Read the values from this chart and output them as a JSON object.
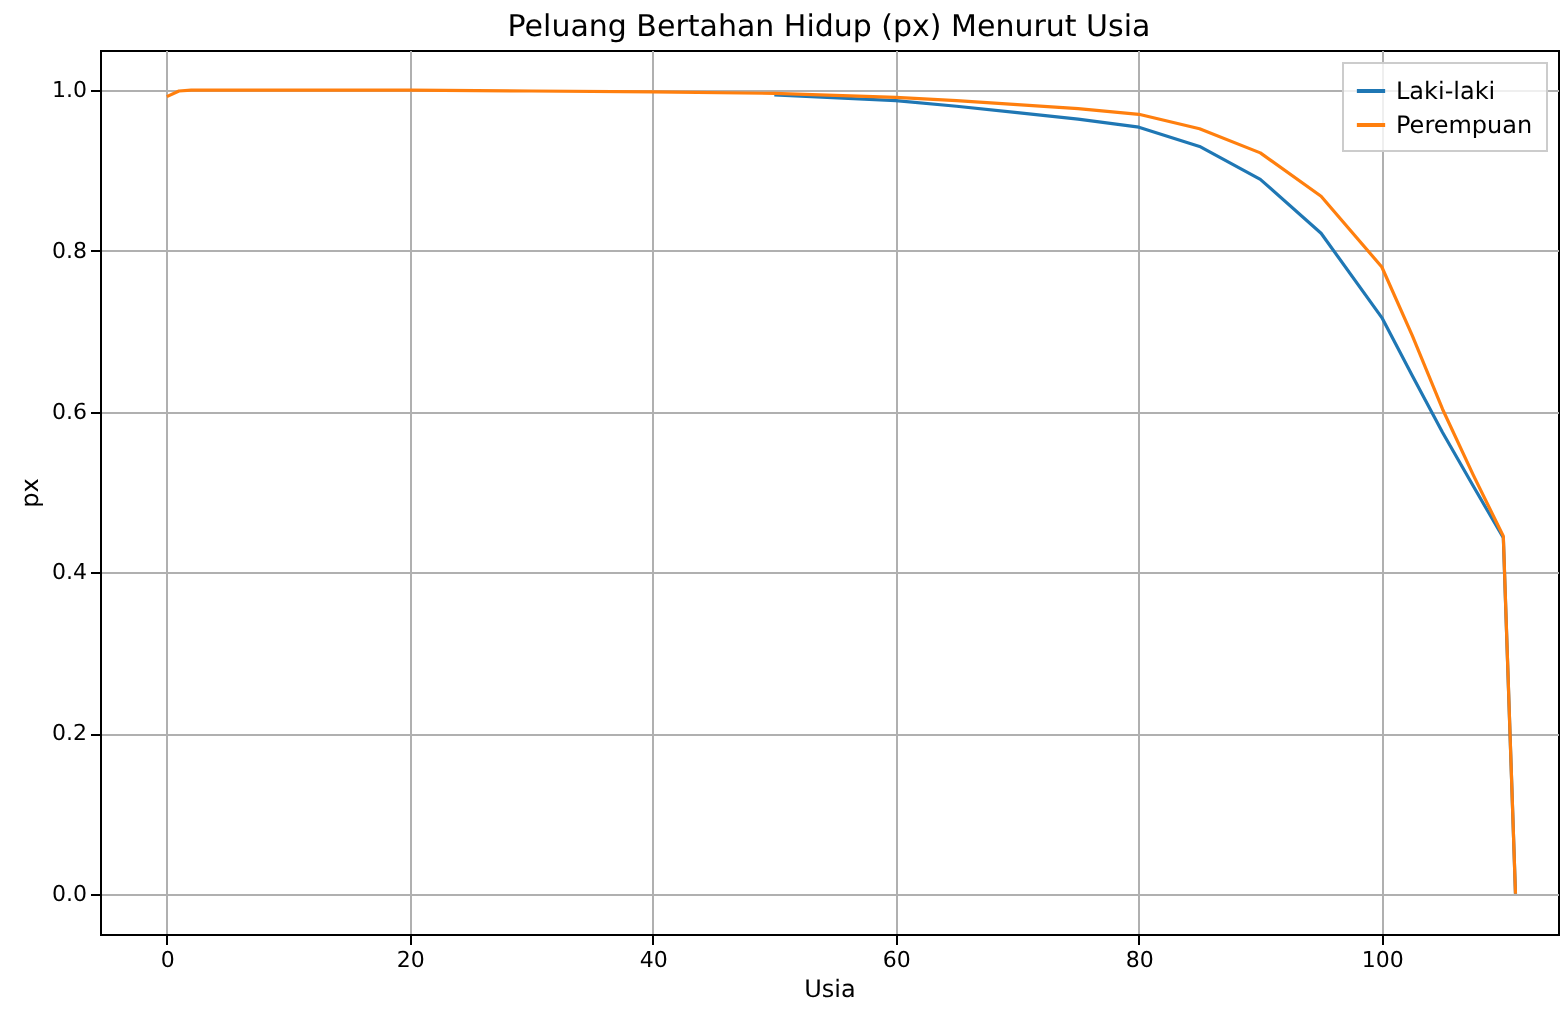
{
  "chart_data": {
    "type": "line",
    "title": "Peluang Bertahan Hidup (px) Menurut Usia",
    "xlabel": "Usia",
    "ylabel": "px",
    "x": [
      0,
      1,
      2,
      5,
      10,
      20,
      30,
      40,
      50,
      60,
      65,
      70,
      75,
      80,
      85,
      90,
      95,
      100,
      102.5,
      105,
      107.5,
      110,
      111
    ],
    "series": [
      {
        "name": "Laki-laki",
        "color": "#1f77b4",
        "values": [
          null,
          null,
          null,
          null,
          null,
          null,
          null,
          null,
          0.994,
          0.987,
          0.98,
          0.972,
          0.964,
          0.954,
          0.93,
          0.889,
          0.822,
          0.717,
          0.645,
          0.574,
          0.508,
          0.443,
          0
        ]
      },
      {
        "name": "Perempuan",
        "color": "#ff7f0e",
        "values": [
          0.992,
          0.999,
          1.0,
          1.0,
          1.0,
          1.0,
          0.999,
          0.998,
          0.996,
          0.991,
          0.987,
          0.982,
          0.977,
          0.97,
          0.952,
          0.922,
          0.868,
          0.78,
          0.695,
          0.603,
          0.522,
          0.445,
          0
        ]
      }
    ],
    "xlim": [
      -5.5,
      114.5
    ],
    "xticks": [
      0,
      20,
      40,
      60,
      80,
      100
    ],
    "ylim": [
      -0.05,
      1.05
    ],
    "yticks": [
      {
        "value": 0,
        "label": "0.0"
      },
      0.2,
      0.4,
      0.6,
      0.8,
      {
        "value": 1,
        "label": "1.0"
      }
    ],
    "grid": true,
    "legend": "top right"
  }
}
